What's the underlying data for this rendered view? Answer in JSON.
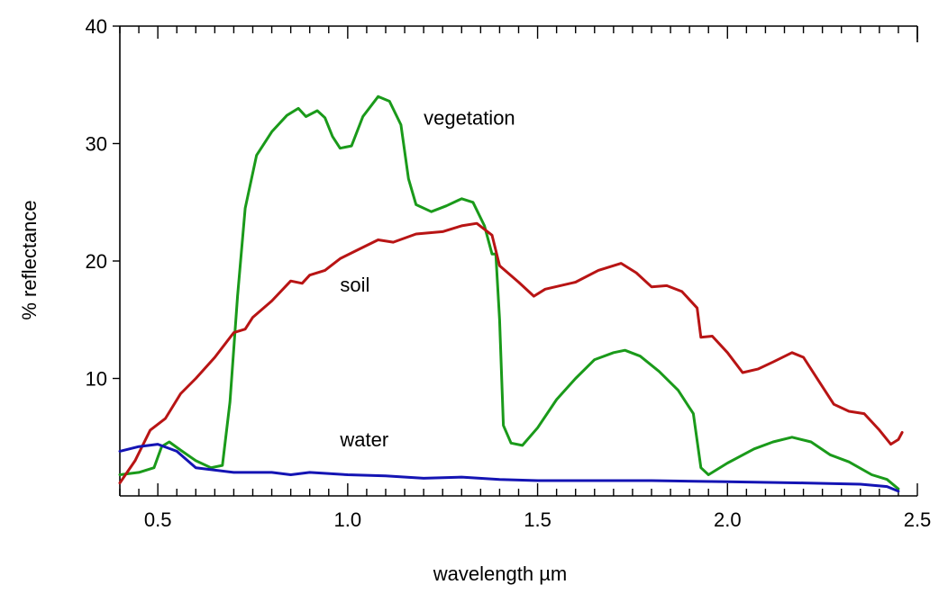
{
  "chart_data": {
    "type": "line",
    "title": "",
    "xlabel": "wavelength µm",
    "ylabel": "% reflectance",
    "xlim": [
      0.4,
      2.5
    ],
    "ylim": [
      0,
      40
    ],
    "x_ticks": [
      0.5,
      1.0,
      1.5,
      2.0,
      2.5
    ],
    "x_tick_labels": [
      "0.5",
      "1.0",
      "1.5",
      "2.0",
      "2.5"
    ],
    "y_ticks": [
      10,
      20,
      30,
      40
    ],
    "y_tick_labels": [
      "10",
      "20",
      "30",
      "40"
    ],
    "grid": false,
    "series": [
      {
        "name": "vegetation",
        "color": "#1a9a1a",
        "label_at": [
          1.2,
          31.6
        ],
        "points": [
          [
            0.4,
            1.8
          ],
          [
            0.45,
            2.0
          ],
          [
            0.49,
            2.4
          ],
          [
            0.51,
            4.2
          ],
          [
            0.53,
            4.6
          ],
          [
            0.56,
            3.9
          ],
          [
            0.6,
            3.0
          ],
          [
            0.64,
            2.4
          ],
          [
            0.67,
            2.6
          ],
          [
            0.69,
            8.0
          ],
          [
            0.71,
            17.0
          ],
          [
            0.73,
            24.5
          ],
          [
            0.76,
            29.0
          ],
          [
            0.8,
            31.0
          ],
          [
            0.84,
            32.4
          ],
          [
            0.87,
            33.0
          ],
          [
            0.89,
            32.3
          ],
          [
            0.92,
            32.8
          ],
          [
            0.94,
            32.2
          ],
          [
            0.96,
            30.6
          ],
          [
            0.98,
            29.6
          ],
          [
            1.01,
            29.8
          ],
          [
            1.04,
            32.3
          ],
          [
            1.08,
            34.0
          ],
          [
            1.11,
            33.6
          ],
          [
            1.14,
            31.6
          ],
          [
            1.16,
            27.0
          ],
          [
            1.18,
            24.8
          ],
          [
            1.22,
            24.2
          ],
          [
            1.26,
            24.7
          ],
          [
            1.3,
            25.3
          ],
          [
            1.33,
            25.0
          ],
          [
            1.36,
            23.0
          ],
          [
            1.38,
            20.6
          ],
          [
            1.39,
            20.6
          ],
          [
            1.4,
            15.0
          ],
          [
            1.41,
            6.0
          ],
          [
            1.43,
            4.5
          ],
          [
            1.46,
            4.3
          ],
          [
            1.5,
            5.8
          ],
          [
            1.55,
            8.2
          ],
          [
            1.6,
            10.0
          ],
          [
            1.65,
            11.6
          ],
          [
            1.7,
            12.2
          ],
          [
            1.73,
            12.4
          ],
          [
            1.77,
            11.9
          ],
          [
            1.82,
            10.6
          ],
          [
            1.87,
            9.0
          ],
          [
            1.91,
            7.0
          ],
          [
            1.93,
            2.4
          ],
          [
            1.95,
            1.8
          ],
          [
            2.0,
            2.8
          ],
          [
            2.07,
            4.0
          ],
          [
            2.12,
            4.6
          ],
          [
            2.17,
            5.0
          ],
          [
            2.22,
            4.6
          ],
          [
            2.27,
            3.5
          ],
          [
            2.32,
            2.9
          ],
          [
            2.38,
            1.8
          ],
          [
            2.42,
            1.4
          ],
          [
            2.45,
            0.6
          ]
        ]
      },
      {
        "name": "soil",
        "color": "#b81414",
        "label_at": [
          0.98,
          17.4
        ],
        "points": [
          [
            0.4,
            1.1
          ],
          [
            0.44,
            3.0
          ],
          [
            0.48,
            5.6
          ],
          [
            0.52,
            6.6
          ],
          [
            0.56,
            8.7
          ],
          [
            0.6,
            10.0
          ],
          [
            0.65,
            11.8
          ],
          [
            0.7,
            13.9
          ],
          [
            0.73,
            14.2
          ],
          [
            0.75,
            15.2
          ],
          [
            0.8,
            16.6
          ],
          [
            0.85,
            18.3
          ],
          [
            0.88,
            18.1
          ],
          [
            0.9,
            18.8
          ],
          [
            0.94,
            19.2
          ],
          [
            0.98,
            20.2
          ],
          [
            1.03,
            21.0
          ],
          [
            1.08,
            21.8
          ],
          [
            1.12,
            21.6
          ],
          [
            1.18,
            22.3
          ],
          [
            1.25,
            22.5
          ],
          [
            1.3,
            23.0
          ],
          [
            1.34,
            23.2
          ],
          [
            1.38,
            22.2
          ],
          [
            1.4,
            19.6
          ],
          [
            1.45,
            18.2
          ],
          [
            1.49,
            17.0
          ],
          [
            1.52,
            17.6
          ],
          [
            1.6,
            18.2
          ],
          [
            1.66,
            19.2
          ],
          [
            1.72,
            19.8
          ],
          [
            1.76,
            19.0
          ],
          [
            1.8,
            17.8
          ],
          [
            1.84,
            17.9
          ],
          [
            1.88,
            17.4
          ],
          [
            1.92,
            16.0
          ],
          [
            1.93,
            13.5
          ],
          [
            1.96,
            13.6
          ],
          [
            2.0,
            12.2
          ],
          [
            2.04,
            10.5
          ],
          [
            2.08,
            10.8
          ],
          [
            2.12,
            11.4
          ],
          [
            2.17,
            12.2
          ],
          [
            2.2,
            11.8
          ],
          [
            2.24,
            9.8
          ],
          [
            2.28,
            7.8
          ],
          [
            2.32,
            7.2
          ],
          [
            2.36,
            7.0
          ],
          [
            2.4,
            5.6
          ],
          [
            2.43,
            4.4
          ],
          [
            2.45,
            4.8
          ],
          [
            2.46,
            5.4
          ]
        ]
      },
      {
        "name": "water",
        "color": "#1414b4",
        "label_at": [
          0.98,
          4.2
        ],
        "points": [
          [
            0.4,
            3.8
          ],
          [
            0.45,
            4.2
          ],
          [
            0.5,
            4.4
          ],
          [
            0.55,
            3.8
          ],
          [
            0.6,
            2.4
          ],
          [
            0.7,
            2.0
          ],
          [
            0.8,
            2.0
          ],
          [
            0.85,
            1.8
          ],
          [
            0.9,
            2.0
          ],
          [
            1.0,
            1.8
          ],
          [
            1.1,
            1.7
          ],
          [
            1.2,
            1.5
          ],
          [
            1.3,
            1.6
          ],
          [
            1.4,
            1.4
          ],
          [
            1.5,
            1.3
          ],
          [
            1.6,
            1.3
          ],
          [
            1.8,
            1.3
          ],
          [
            2.0,
            1.2
          ],
          [
            2.2,
            1.1
          ],
          [
            2.35,
            1.0
          ],
          [
            2.42,
            0.8
          ],
          [
            2.45,
            0.4
          ]
        ]
      }
    ]
  }
}
